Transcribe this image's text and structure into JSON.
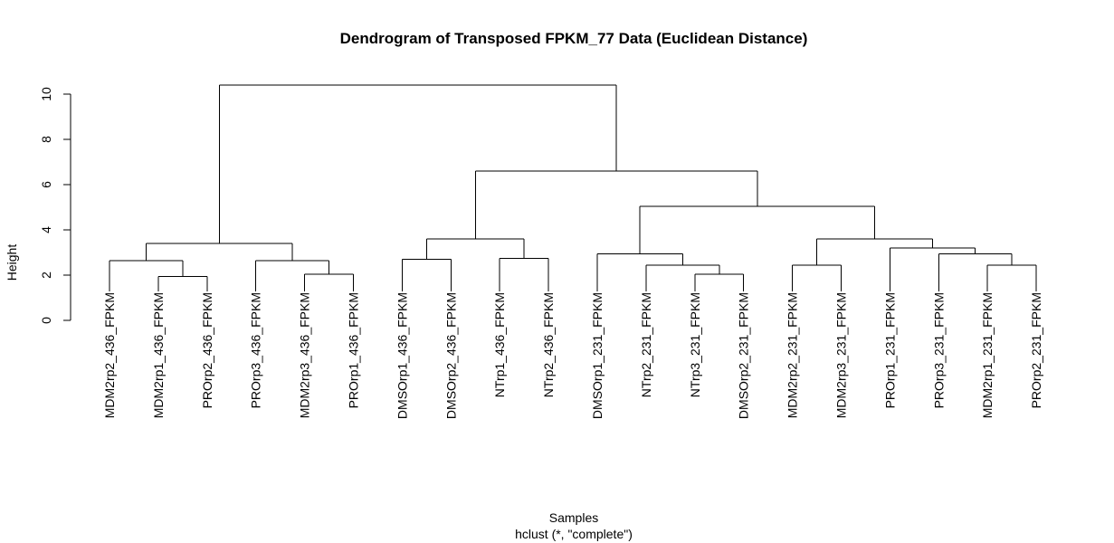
{
  "chart_data": {
    "type": "dendrogram",
    "title": "Dendrogram of Transposed FPKM_77 Data (Euclidean Distance)",
    "xlabel": "Samples",
    "sublabel": "hclust (*, \"complete\")",
    "ylabel": "Height",
    "ylim": [
      0,
      10.4
    ],
    "yticks": [
      0,
      2,
      4,
      6,
      8,
      10
    ],
    "labels": [
      "MDM2rp2_436_FPKM",
      "MDM2rp1_436_FPKM",
      "PROrp2_436_FPKM",
      "PROrp3_436_FPKM",
      "MDM2rp3_436_FPKM",
      "PROrp1_436_FPKM",
      "DMSOrp1_436_FPKM",
      "DMSOrp2_436_FPKM",
      "NTrp1_436_FPKM",
      "NTrp2_436_FPKM",
      "DMSOrp1_231_FPKM",
      "NTrp2_231_FPKM",
      "NTrp3_231_FPKM",
      "DMSOrp2_231_FPKM",
      "MDM2rp2_231_FPKM",
      "MDM2rp3_231_FPKM",
      "PROrp1_231_FPKM",
      "PROrp3_231_FPKM",
      "MDM2rp1_231_FPKM",
      "PROrp2_231_FPKM"
    ],
    "merges": [
      {
        "id": "n1",
        "left": 1,
        "right": 2,
        "height": 1.95
      },
      {
        "id": "n2",
        "left": 0,
        "right": "n1",
        "height": 2.65
      },
      {
        "id": "n3",
        "left": 4,
        "right": 5,
        "height": 2.05
      },
      {
        "id": "n4",
        "left": 3,
        "right": "n3",
        "height": 2.65
      },
      {
        "id": "n5",
        "left": "n2",
        "right": "n4",
        "height": 3.4
      },
      {
        "id": "n6",
        "left": 6,
        "right": 7,
        "height": 2.7
      },
      {
        "id": "n7",
        "left": 8,
        "right": 9,
        "height": 2.75
      },
      {
        "id": "n8",
        "left": "n6",
        "right": "n7",
        "height": 3.6
      },
      {
        "id": "n9",
        "left": 12,
        "right": 13,
        "height": 2.05
      },
      {
        "id": "n10",
        "left": 11,
        "right": "n9",
        "height": 2.45
      },
      {
        "id": "n11",
        "left": 10,
        "right": "n10",
        "height": 2.95
      },
      {
        "id": "n12",
        "left": 14,
        "right": 15,
        "height": 2.45
      },
      {
        "id": "n13",
        "left": 18,
        "right": 19,
        "height": 2.45
      },
      {
        "id": "n14",
        "left": 17,
        "right": "n13",
        "height": 2.95
      },
      {
        "id": "n15",
        "left": 16,
        "right": "n14",
        "height": 3.2
      },
      {
        "id": "n16",
        "left": "n12",
        "right": "n15",
        "height": 3.6
      },
      {
        "id": "n17",
        "left": "n11",
        "right": "n16",
        "height": 5.05
      },
      {
        "id": "n18",
        "left": "n8",
        "right": "n17",
        "height": 6.6
      },
      {
        "id": "n19",
        "left": "n5",
        "right": "n18",
        "height": 10.4
      }
    ]
  }
}
